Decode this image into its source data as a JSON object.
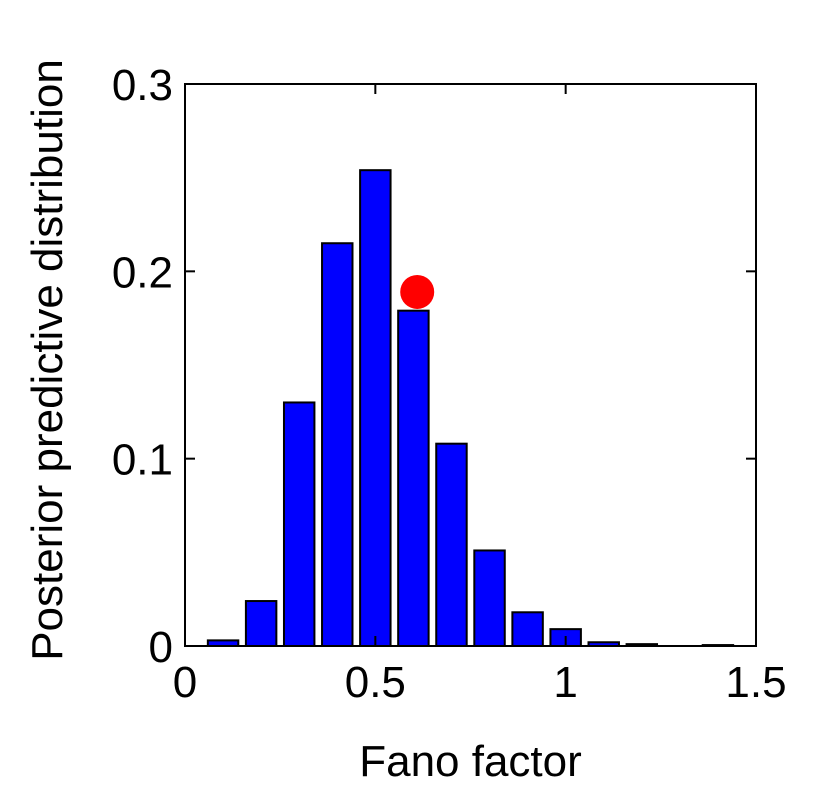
{
  "chart_data": {
    "type": "bar",
    "title": "",
    "xlabel": "Fano factor",
    "ylabel": "Posterior predictive distribution",
    "xlim": [
      0,
      1.5
    ],
    "ylim": [
      0,
      0.3
    ],
    "x_ticks": [
      0,
      0.5,
      1,
      1.5
    ],
    "x_tick_labels": [
      "0",
      "0.5",
      "1",
      "1.5"
    ],
    "y_ticks": [
      0,
      0.1,
      0.2,
      0.3
    ],
    "y_tick_labels": [
      "0",
      "0.1",
      "0.2",
      "0.3"
    ],
    "grid": false,
    "bar_width": 0.08,
    "series": [
      {
        "x": [
          0.1,
          0.2,
          0.3,
          0.4,
          0.5,
          0.6,
          0.7,
          0.8,
          0.9,
          1.0,
          1.1,
          1.2,
          1.3,
          1.4
        ],
        "values": [
          0.003,
          0.024,
          0.13,
          0.215,
          0.254,
          0.179,
          0.108,
          0.051,
          0.018,
          0.009,
          0.002,
          0.001,
          0.0,
          0.0005
        ],
        "color": "#0000ff"
      }
    ],
    "observed_point": {
      "x": 0.61,
      "y": 0.189,
      "color": "#ff0000"
    }
  }
}
